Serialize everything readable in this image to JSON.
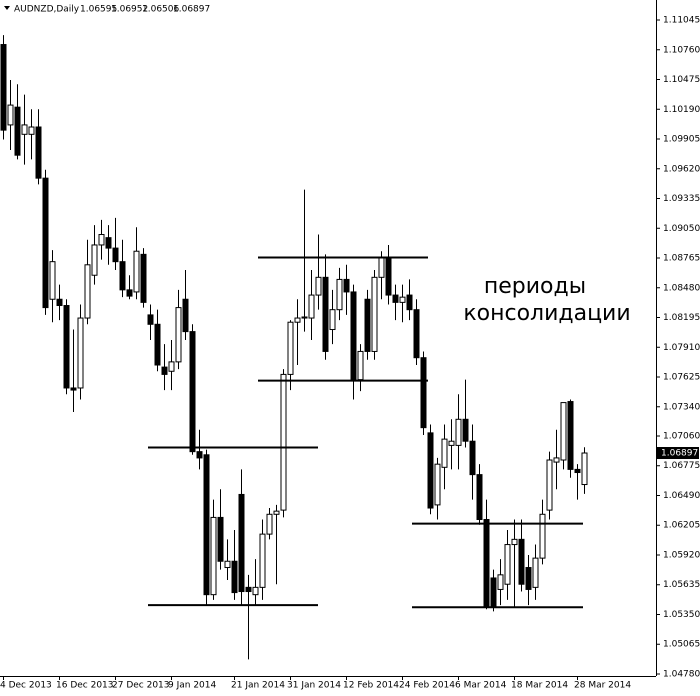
{
  "chart_data": {
    "type": "candlestick",
    "title": "AUDNZD,Daily",
    "categories": [
      "4 Dec 2013",
      null,
      null,
      null,
      null,
      null,
      null,
      null,
      "16 Dec 2013",
      null,
      null,
      null,
      null,
      null,
      null,
      null,
      "27 Dec 2013",
      null,
      null,
      null,
      null,
      null,
      null,
      null,
      "9 Jan 2014",
      null,
      null,
      null,
      null,
      null,
      null,
      null,
      null,
      "21 Jan 2014",
      null,
      null,
      null,
      null,
      null,
      null,
      null,
      "31 Jan 2014",
      null,
      null,
      null,
      null,
      null,
      null,
      null,
      "12 Feb 2014",
      null,
      null,
      null,
      null,
      null,
      null,
      null,
      "24 Feb 2014",
      null,
      null,
      null,
      null,
      null,
      null,
      null,
      "6 Mar 2014",
      null,
      null,
      null,
      null,
      null,
      null,
      null,
      "18 Mar 2014",
      null,
      null,
      null,
      null,
      null,
      null,
      null,
      null,
      "28 Mar 2014",
      null
    ],
    "open": [
      1.1081,
      1.1004,
      1.1021,
      1.0995,
      1.0995,
      1.1002,
      1.0953,
      1.0837,
      1.0837,
      1.0831,
      1.0752,
      1.0752,
      1.0819,
      1.086,
      1.0889,
      1.0896,
      1.0886,
      1.0873,
      1.0846,
      1.0844,
      1.088,
      1.0822,
      1.0813,
      1.0772,
      1.0768,
      1.0777,
      1.0837,
      1.0806,
      1.0691,
      1.0688,
      1.0554,
      1.0628,
      1.058,
      1.0586,
      1.065,
      1.0561,
      1.0554,
      1.0561,
      1.0612,
      1.0631,
      1.0635,
      1.0765,
      1.0815,
      1.0819,
      1.0819,
      1.0841,
      1.0858,
      1.0808,
      1.0827,
      1.0856,
      1.0844,
      1.076,
      1.0837,
      1.0787,
      1.0858,
      1.0877,
      1.0841,
      1.0834,
      1.0841,
      1.0827,
      1.0781,
      1.0709,
      1.064,
      1.0676,
      1.0697,
      1.0697,
      1.0722,
      1.0701,
      1.0669,
      1.0626,
      1.057,
      1.0559,
      1.0564,
      1.0602,
      1.0607,
      1.058,
      1.0561,
      1.0589,
      1.0635,
      1.0681,
      1.0683,
      1.0739,
      1.0674,
      1.06595
    ],
    "high": [
      1.109,
      1.1047,
      1.1043,
      1.1033,
      1.1019,
      1.1019,
      1.0961,
      1.0884,
      1.0851,
      1.0837,
      1.0808,
      1.0832,
      1.0894,
      1.0908,
      1.0913,
      1.0908,
      1.0915,
      1.0894,
      1.086,
      1.0906,
      1.0886,
      1.0832,
      1.0827,
      1.0794,
      1.0798,
      1.0846,
      1.0865,
      1.0813,
      1.0712,
      1.0693,
      1.0645,
      1.0655,
      1.0607,
      1.0616,
      1.0674,
      1.0573,
      1.0588,
      1.0626,
      1.0637,
      1.064,
      1.077,
      1.0817,
      1.0837,
      1.0942,
      1.0865,
      1.0899,
      1.088,
      1.0846,
      1.0867,
      1.087,
      1.0851,
      1.0794,
      1.0846,
      1.0865,
      1.0883,
      1.0889,
      1.0851,
      1.0851,
      1.0856,
      1.0837,
      1.0787,
      1.0717,
      1.0685,
      1.0717,
      1.0722,
      1.0746,
      1.076,
      1.0717,
      1.0679,
      1.0645,
      1.0578,
      1.0588,
      1.0616,
      1.0626,
      1.0626,
      1.0592,
      1.0602,
      1.0645,
      1.0691,
      1.0712,
      1.0738,
      1.0741,
      1.0679,
      1.06952
    ],
    "low": [
      1.099,
      1.098,
      1.0971,
      1.0966,
      1.0971,
      1.0947,
      1.0822,
      1.0815,
      1.0817,
      1.0746,
      1.0729,
      1.0741,
      1.0813,
      1.0851,
      1.0875,
      1.087,
      1.0865,
      1.0839,
      1.0837,
      1.0837,
      1.0829,
      1.0798,
      1.0768,
      1.075,
      1.075,
      1.077,
      1.0798,
      1.0688,
      1.0674,
      1.0544,
      1.0549,
      1.0578,
      1.0568,
      1.0549,
      1.0544,
      1.0492,
      1.0544,
      1.0549,
      1.0607,
      1.0564,
      1.0628,
      1.075,
      1.0774,
      1.0806,
      1.0798,
      1.0827,
      1.0779,
      1.0794,
      1.0817,
      1.0822,
      1.0741,
      1.0749,
      1.0779,
      1.0779,
      1.0837,
      1.0832,
      1.0817,
      1.0815,
      1.0817,
      1.0774,
      1.0707,
      1.0631,
      1.0626,
      1.0655,
      1.0674,
      1.0674,
      1.0695,
      1.0645,
      1.0621,
      1.054,
      1.0538,
      1.0544,
      1.0549,
      1.0542,
      1.0557,
      1.0544,
      1.0549,
      1.0583,
      1.0626,
      1.0655,
      1.0674,
      1.0666,
      1.0645,
      1.06506
    ],
    "close": [
      1.0999,
      1.1023,
      1.0975,
      1.1004,
      1.1002,
      1.0953,
      1.0829,
      1.0873,
      1.0831,
      1.0752,
      1.075,
      1.0819,
      1.087,
      1.0889,
      1.0899,
      1.0886,
      1.0873,
      1.0846,
      1.084,
      1.0883,
      1.0834,
      1.0813,
      1.0774,
      1.0765,
      1.0777,
      1.0829,
      1.0806,
      1.0691,
      1.0685,
      1.0554,
      1.0628,
      1.0586,
      1.0586,
      1.0556,
      1.0557,
      1.0557,
      1.0561,
      1.0612,
      1.0631,
      1.0634,
      1.0765,
      1.0815,
      1.0819,
      1.082,
      1.0841,
      1.0858,
      1.0787,
      1.0827,
      1.0856,
      1.0844,
      1.076,
      1.0787,
      1.0787,
      1.0858,
      1.0877,
      1.0841,
      1.0834,
      1.0839,
      1.0827,
      1.0781,
      1.0714,
      1.0637,
      1.0679,
      1.0703,
      1.0701,
      1.0722,
      1.0701,
      1.0669,
      1.0626,
      1.0542,
      1.0542,
      1.0573,
      1.0602,
      1.0607,
      1.0564,
      1.0559,
      1.0589,
      1.0631,
      1.0683,
      1.0685,
      1.0738,
      1.0674,
      1.0671,
      1.06897
    ],
    "ylim": [
      1.0478,
      1.1116
    ],
    "yticks": [
      1.11045,
      {
        "value": 1.1076,
        "label": "1.10760"
      },
      1.10475,
      {
        "value": 1.1019,
        "label": "1.10190"
      },
      1.09905,
      {
        "value": 1.0962,
        "label": "1.09620"
      },
      1.09335,
      {
        "value": 1.0905,
        "label": "1.09050"
      },
      1.08765,
      {
        "value": 1.0848,
        "label": "1.08480"
      },
      1.08195,
      {
        "value": 1.0791,
        "label": "1.07910"
      },
      1.07625,
      {
        "value": 1.0734,
        "label": "1.07340"
      },
      {
        "value": 1.0706,
        "label": "1.07060"
      },
      1.06775,
      {
        "value": 1.0649,
        "label": "1.06490"
      },
      1.06205,
      {
        "value": 1.0592,
        "label": "1.05920"
      },
      1.05635,
      {
        "value": 1.0535,
        "label": "1.05350"
      },
      1.05065,
      {
        "value": 1.0478,
        "label": "1.04780"
      }
    ],
    "levels": [
      1.0877,
      1.0759,
      1.0695,
      1.0544,
      1.0622,
      1.0542
    ],
    "annotation": [
      "периоды",
      "консолидации"
    ]
  }
}
